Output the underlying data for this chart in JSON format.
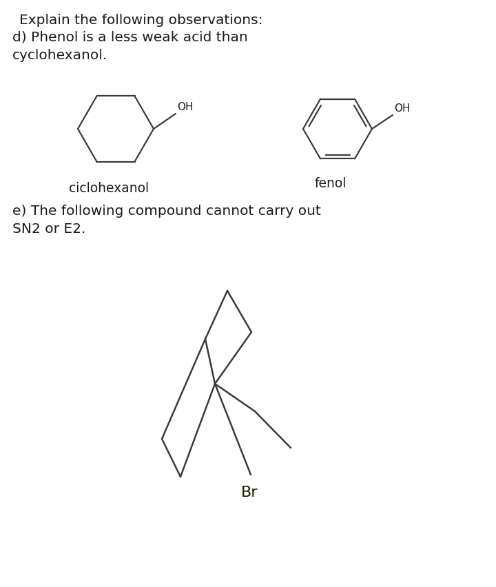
{
  "title": "Explain the following observations:",
  "part_d_text": "d) Phenol is a less weak acid than\ncyclohexanol.",
  "part_e_text": "e) The following compound cannot carry out\nSN2 or E2.",
  "label_cyclohexanol": "ciclohexanol",
  "label_fenol": "fenol",
  "label_br": "Br",
  "bg_color": "#ffffff",
  "text_color": "#1a1a1a",
  "line_color": "#3a3a3a",
  "font_size_title": 14.5,
  "font_size_body": 14.5,
  "font_size_label": 13.5
}
